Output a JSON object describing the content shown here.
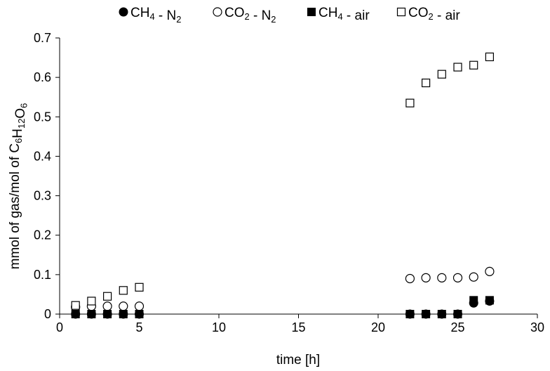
{
  "chart_data": {
    "type": "scatter",
    "xlabel": "time [h]",
    "ylabel": {
      "base": "mmol of gas/mol of C",
      "formula": [
        {
          "t": "6",
          "sub": true
        },
        {
          "t": "H",
          "sub": false
        },
        {
          "t": "12",
          "sub": true
        },
        {
          "t": "O",
          "sub": false
        },
        {
          "t": "6",
          "sub": true
        }
      ]
    },
    "xlim": [
      0,
      30
    ],
    "ylim": [
      0,
      0.7
    ],
    "xticks": [
      0,
      5,
      10,
      15,
      20,
      25,
      30
    ],
    "yticks": [
      0,
      0.1,
      0.2,
      0.3,
      0.4,
      0.5,
      0.6,
      0.7
    ],
    "ytick_labels": [
      "0",
      "0.1",
      "0.2",
      "0.3",
      "0.4",
      "0.5",
      "0.6",
      "0.7"
    ],
    "legend_position": "top",
    "grid": false,
    "series": [
      {
        "name": "CH4 - N2",
        "label_parts": [
          {
            "t": "CH",
            "sub": false
          },
          {
            "t": "4",
            "sub": true
          },
          {
            "t": " - N",
            "sub": false
          },
          {
            "t": "2",
            "sub": true
          }
        ],
        "marker": "circle-filled",
        "x": [
          1,
          2,
          3,
          4,
          5,
          22,
          23,
          24,
          25,
          26,
          27
        ],
        "y": [
          0,
          0,
          0,
          0,
          0,
          0,
          0,
          0,
          0,
          0.028,
          0.033
        ]
      },
      {
        "name": "CO2 - N2",
        "label_parts": [
          {
            "t": "CO",
            "sub": false
          },
          {
            "t": "2",
            "sub": true
          },
          {
            "t": " - N",
            "sub": false
          },
          {
            "t": "2",
            "sub": true
          }
        ],
        "marker": "circle-open",
        "x": [
          1,
          2,
          3,
          4,
          5,
          22,
          23,
          24,
          25,
          26,
          27
        ],
        "y": [
          0.018,
          0.02,
          0.02,
          0.02,
          0.02,
          0.09,
          0.092,
          0.092,
          0.092,
          0.094,
          0.108
        ]
      },
      {
        "name": "CH4 - air",
        "label_parts": [
          {
            "t": "CH",
            "sub": false
          },
          {
            "t": "4",
            "sub": true
          },
          {
            "t": " - air",
            "sub": false
          }
        ],
        "marker": "square-filled",
        "x": [
          1,
          2,
          3,
          4,
          5,
          22,
          23,
          24,
          25,
          26,
          27
        ],
        "y": [
          0,
          0,
          0,
          0,
          0,
          0,
          0,
          0,
          0,
          0.035,
          0.035
        ]
      },
      {
        "name": "CO2 - air",
        "label_parts": [
          {
            "t": "CO",
            "sub": false
          },
          {
            "t": "2",
            "sub": true
          },
          {
            "t": " - air",
            "sub": false
          }
        ],
        "marker": "square-open",
        "x": [
          1,
          2,
          3,
          4,
          5,
          22,
          23,
          24,
          25,
          26,
          27
        ],
        "y": [
          0.022,
          0.033,
          0.045,
          0.06,
          0.068,
          0.535,
          0.586,
          0.608,
          0.626,
          0.631,
          0.652
        ]
      }
    ]
  }
}
